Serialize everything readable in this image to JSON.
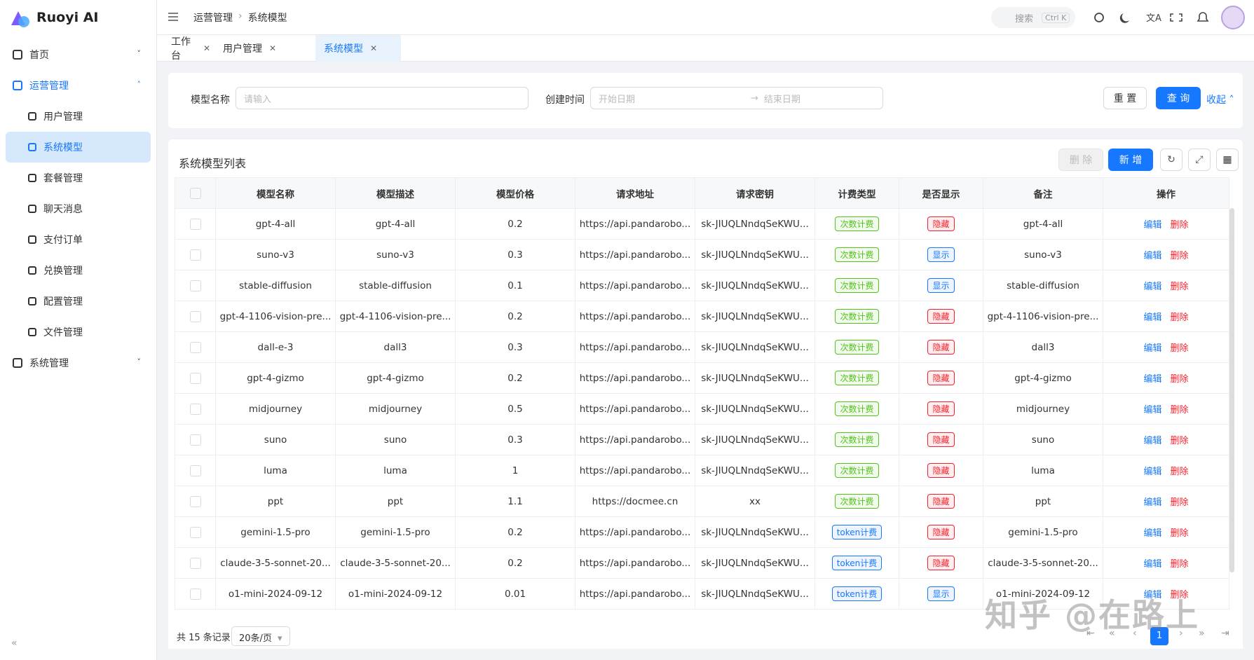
{
  "brand": "Ruoyi AI",
  "menu": [
    {
      "label": "首页"
    },
    {
      "label": "运营管理",
      "children": [
        "用户管理",
        "系统模型",
        "套餐管理",
        "聊天消息",
        "支付订单",
        "兑换管理",
        "配置管理",
        "文件管理"
      ]
    },
    {
      "label": "系统管理"
    }
  ],
  "breadcrumb": [
    "运营管理",
    "系统模型"
  ],
  "search": {
    "placeholder": "搜索",
    "shortcut": "Ctrl K"
  },
  "tabs": [
    "工作台",
    "用户管理",
    "系统模型"
  ],
  "filters": {
    "name_label": "模型名称",
    "name_placeholder": "请输入",
    "time_label": "创建时间",
    "start_placeholder": "开始日期",
    "end_placeholder": "结束日期",
    "reset": "重 置",
    "query": "查 询",
    "collapse": "收起"
  },
  "table": {
    "title": "系统模型列表",
    "delete": "删 除",
    "add": "新 增",
    "columns": [
      "模型名称",
      "模型描述",
      "模型价格",
      "请求地址",
      "请求密钥",
      "计费类型",
      "是否显示",
      "备注",
      "操作"
    ],
    "actions": [
      "编辑",
      "删除"
    ],
    "rows": [
      [
        "gpt-4-all",
        "gpt-4-all",
        0.2,
        "https://api.pandarobo...",
        "sk-JIUQLNndqSeKWU...",
        {
          "label": "次数计费",
          "color": "#52c41a"
        },
        {
          "label": "隐藏",
          "color": "#f5222d"
        },
        "gpt-4-all"
      ],
      [
        "suno-v3",
        "suno-v3",
        0.3,
        "https://api.pandarobo...",
        "sk-JIUQLNndqSeKWU...",
        {
          "label": "次数计费",
          "color": "#52c41a"
        },
        {
          "label": "显示",
          "color": "#1677ff"
        },
        "suno-v3"
      ],
      [
        "stable-diffusion",
        "stable-diffusion",
        0.1,
        "https://api.pandarobo...",
        "sk-JIUQLNndqSeKWU...",
        {
          "label": "次数计费",
          "color": "#52c41a"
        },
        {
          "label": "显示",
          "color": "#1677ff"
        },
        "stable-diffusion"
      ],
      [
        "gpt-4-1106-vision-pre...",
        "gpt-4-1106-vision-pre...",
        0.2,
        "https://api.pandarobo...",
        "sk-JIUQLNndqSeKWU...",
        {
          "label": "次数计费",
          "color": "#52c41a"
        },
        {
          "label": "隐藏",
          "color": "#f5222d"
        },
        "gpt-4-1106-vision-pre..."
      ],
      [
        "dall-e-3",
        "dall3",
        0.3,
        "https://api.pandarobo...",
        "sk-JIUQLNndqSeKWU...",
        {
          "label": "次数计费",
          "color": "#52c41a"
        },
        {
          "label": "隐藏",
          "color": "#f5222d"
        },
        "dall3"
      ],
      [
        "gpt-4-gizmo",
        "gpt-4-gizmo",
        0.2,
        "https://api.pandarobo...",
        "sk-JIUQLNndqSeKWU...",
        {
          "label": "次数计费",
          "color": "#52c41a"
        },
        {
          "label": "隐藏",
          "color": "#f5222d"
        },
        "gpt-4-gizmo"
      ],
      [
        "midjourney",
        "midjourney",
        0.5,
        "https://api.pandarobo...",
        "sk-JIUQLNndqSeKWU...",
        {
          "label": "次数计费",
          "color": "#52c41a"
        },
        {
          "label": "隐藏",
          "color": "#f5222d"
        },
        "midjourney"
      ],
      [
        "suno",
        "suno",
        0.3,
        "https://api.pandarobo...",
        "sk-JIUQLNndqSeKWU...",
        {
          "label": "次数计费",
          "color": "#52c41a"
        },
        {
          "label": "隐藏",
          "color": "#f5222d"
        },
        "suno"
      ],
      [
        "luma",
        "luma",
        1,
        "https://api.pandarobo...",
        "sk-JIUQLNndqSeKWU...",
        {
          "label": "次数计费",
          "color": "#52c41a"
        },
        {
          "label": "隐藏",
          "color": "#f5222d"
        },
        "luma"
      ],
      [
        "ppt",
        "ppt",
        1.1,
        "https://docmee.cn",
        "xx",
        {
          "label": "次数计费",
          "color": "#52c41a"
        },
        {
          "label": "隐藏",
          "color": "#f5222d"
        },
        "ppt"
      ],
      [
        "gemini-1.5-pro",
        "gemini-1.5-pro",
        0.2,
        "https://api.pandarobo...",
        "sk-JIUQLNndqSeKWU...",
        {
          "label": "token计费",
          "color": "#1677ff"
        },
        {
          "label": "隐藏",
          "color": "#f5222d"
        },
        "gemini-1.5-pro"
      ],
      [
        "claude-3-5-sonnet-20...",
        "claude-3-5-sonnet-20...",
        0.2,
        "https://api.pandarobo...",
        "sk-JIUQLNndqSeKWU...",
        {
          "label": "token计费",
          "color": "#1677ff"
        },
        {
          "label": "隐藏",
          "color": "#f5222d"
        },
        "claude-3-5-sonnet-20..."
      ],
      [
        "o1-mini-2024-09-12",
        "o1-mini-2024-09-12",
        0.01,
        "https://api.pandarobo...",
        "sk-JIUQLNndqSeKWU...",
        {
          "label": "token计费",
          "color": "#1677ff"
        },
        {
          "label": "显示",
          "color": "#1677ff"
        },
        "o1-mini-2024-09-12"
      ]
    ]
  },
  "pagination": {
    "total": "共 15 条记录",
    "page_size": "20条/页",
    "current": "1"
  },
  "watermark": "知乎 @在路上"
}
